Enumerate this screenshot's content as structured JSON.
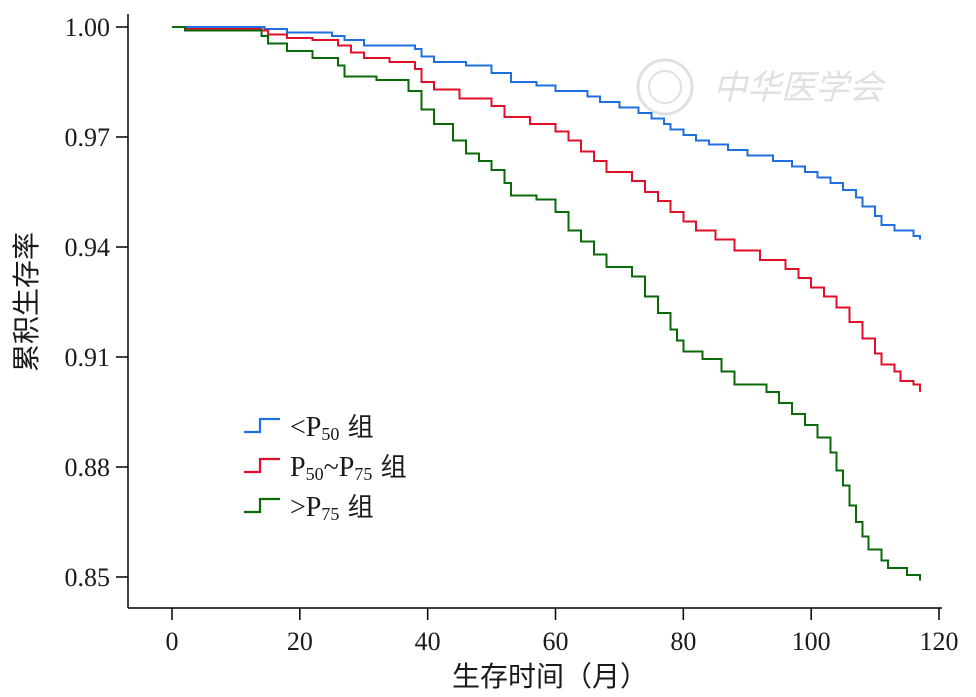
{
  "chart_data": {
    "type": "line",
    "step": true,
    "xlabel": "生存时间（月）",
    "ylabel": "累积生存率",
    "xlim": [
      -7,
      120
    ],
    "ylim": [
      0.842,
      1.002
    ],
    "xticks": [
      0,
      20,
      40,
      60,
      80,
      100,
      120
    ],
    "yticks": [
      1.0,
      0.97,
      0.94,
      0.91,
      0.88,
      0.85
    ],
    "ytick_labels": [
      "1.00",
      "0.97",
      "0.94",
      "0.91",
      "0.88",
      "0.85"
    ],
    "legend_position": "lower-left",
    "watermark": "中华医学会",
    "series": [
      {
        "legend": {
          "pre": "<P",
          "sub1": "50",
          "mid": "",
          "sub2": "",
          "post": " 组"
        },
        "color": "#1f6fe0",
        "points": [
          [
            0,
            1.0
          ],
          [
            14,
            1.0
          ],
          [
            14.5,
            0.9995
          ],
          [
            18,
            0.9985
          ],
          [
            25,
            0.9975
          ],
          [
            27,
            0.9965
          ],
          [
            30,
            0.995
          ],
          [
            38,
            0.994
          ],
          [
            39,
            0.992
          ],
          [
            41,
            0.9905
          ],
          [
            46,
            0.9895
          ],
          [
            50,
            0.9875
          ],
          [
            53,
            0.985
          ],
          [
            57,
            0.984
          ],
          [
            60,
            0.9825
          ],
          [
            65,
            0.981
          ],
          [
            67,
            0.9795
          ],
          [
            70,
            0.978
          ],
          [
            73,
            0.9765
          ],
          [
            75,
            0.975
          ],
          [
            77,
            0.9735
          ],
          [
            78,
            0.972
          ],
          [
            80,
            0.9705
          ],
          [
            82,
            0.969
          ],
          [
            84,
            0.968
          ],
          [
            87,
            0.9665
          ],
          [
            90,
            0.965
          ],
          [
            94,
            0.9635
          ],
          [
            97,
            0.962
          ],
          [
            99,
            0.9605
          ],
          [
            101,
            0.959
          ],
          [
            103,
            0.9575
          ],
          [
            105,
            0.9555
          ],
          [
            107,
            0.9535
          ],
          [
            108,
            0.951
          ],
          [
            110,
            0.9485
          ],
          [
            111,
            0.946
          ],
          [
            113,
            0.9445
          ],
          [
            116,
            0.943
          ],
          [
            117,
            0.942
          ]
        ]
      },
      {
        "legend": {
          "pre": "P",
          "sub1": "50",
          "mid": "~P",
          "sub2": "75",
          "post": " 组"
        },
        "color": "#e0102a",
        "points": [
          [
            0,
            1.0
          ],
          [
            2,
            0.9995
          ],
          [
            14,
            0.999
          ],
          [
            15,
            0.998
          ],
          [
            18,
            0.997
          ],
          [
            22,
            0.9965
          ],
          [
            26,
            0.995
          ],
          [
            28,
            0.993
          ],
          [
            30,
            0.9915
          ],
          [
            34,
            0.9905
          ],
          [
            38,
            0.9885
          ],
          [
            39,
            0.985
          ],
          [
            41,
            0.983
          ],
          [
            45,
            0.9805
          ],
          [
            50,
            0.9785
          ],
          [
            52,
            0.9755
          ],
          [
            56,
            0.9735
          ],
          [
            60,
            0.9715
          ],
          [
            62,
            0.969
          ],
          [
            64,
            0.966
          ],
          [
            66,
            0.9635
          ],
          [
            68,
            0.9605
          ],
          [
            72,
            0.958
          ],
          [
            74,
            0.955
          ],
          [
            76,
            0.9525
          ],
          [
            78,
            0.9495
          ],
          [
            80,
            0.947
          ],
          [
            82,
            0.9445
          ],
          [
            85,
            0.942
          ],
          [
            88,
            0.939
          ],
          [
            92,
            0.9365
          ],
          [
            96,
            0.934
          ],
          [
            98,
            0.9315
          ],
          [
            100,
            0.929
          ],
          [
            102,
            0.9265
          ],
          [
            104,
            0.9235
          ],
          [
            106,
            0.9195
          ],
          [
            108,
            0.915
          ],
          [
            110,
            0.911
          ],
          [
            111,
            0.908
          ],
          [
            113,
            0.906
          ],
          [
            114,
            0.9035
          ],
          [
            116,
            0.9025
          ],
          [
            117,
            0.9005
          ]
        ]
      },
      {
        "legend": {
          "pre": ">P",
          "sub1": "75",
          "mid": "",
          "sub2": "",
          "post": " 组"
        },
        "color": "#0a6a0a",
        "points": [
          [
            0,
            1.0
          ],
          [
            2,
            0.999
          ],
          [
            14,
            0.9975
          ],
          [
            15,
            0.9955
          ],
          [
            18,
            0.9935
          ],
          [
            22,
            0.9915
          ],
          [
            26,
            0.9895
          ],
          [
            27,
            0.9865
          ],
          [
            32,
            0.9855
          ],
          [
            37,
            0.9825
          ],
          [
            39,
            0.9775
          ],
          [
            41,
            0.9735
          ],
          [
            44,
            0.969
          ],
          [
            46,
            0.9655
          ],
          [
            48,
            0.9635
          ],
          [
            50,
            0.961
          ],
          [
            52,
            0.9575
          ],
          [
            53,
            0.954
          ],
          [
            57,
            0.953
          ],
          [
            60,
            0.9495
          ],
          [
            62,
            0.9445
          ],
          [
            64,
            0.9415
          ],
          [
            66,
            0.938
          ],
          [
            68,
            0.9345
          ],
          [
            72,
            0.932
          ],
          [
            74,
            0.9265
          ],
          [
            76,
            0.922
          ],
          [
            78,
            0.9175
          ],
          [
            79,
            0.9145
          ],
          [
            80,
            0.9115
          ],
          [
            83,
            0.9095
          ],
          [
            86,
            0.906
          ],
          [
            88,
            0.9025
          ],
          [
            93,
            0.9005
          ],
          [
            95,
            0.8975
          ],
          [
            97,
            0.8945
          ],
          [
            99,
            0.8915
          ],
          [
            101,
            0.888
          ],
          [
            103,
            0.884
          ],
          [
            104,
            0.879
          ],
          [
            105,
            0.875
          ],
          [
            106,
            0.8695
          ],
          [
            107,
            0.865
          ],
          [
            108,
            0.861
          ],
          [
            109,
            0.8575
          ],
          [
            111,
            0.8545
          ],
          [
            112,
            0.8525
          ],
          [
            115,
            0.8505
          ],
          [
            117,
            0.849
          ]
        ]
      }
    ]
  }
}
